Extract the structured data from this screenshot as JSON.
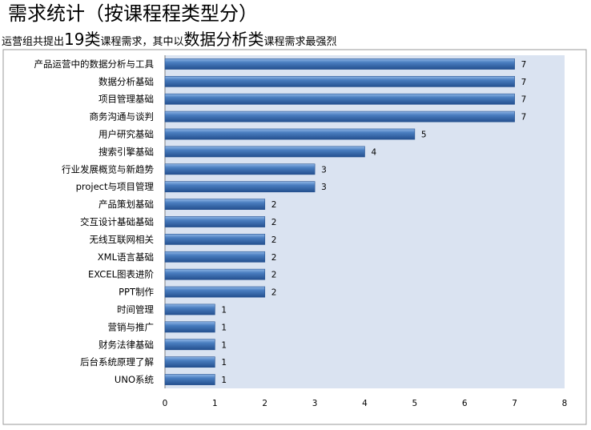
{
  "title": "需求统计（按课程程类型分）",
  "subtitle": {
    "prefix": "运营组共提出",
    "count": "19类",
    "middle": "课程需求，其中以",
    "highlight": "数据分析类",
    "suffix": "课程需求最强烈"
  },
  "chart_data": {
    "type": "bar",
    "orientation": "horizontal",
    "categories": [
      "产品运营中的数据分析与工具",
      "数据分析基础",
      "项目管理基础",
      "商务沟通与谈判",
      "用户研究基础",
      "搜索引擎基础",
      "行业发展概览与新趋势",
      "project与项目管理",
      "产品策划基础",
      "交互设计基础基础",
      "无线互联网相关",
      "XML语言基础",
      "EXCEL图表进阶",
      "PPT制作",
      "时间管理",
      "营销与推广",
      "财务法律基础",
      "后台系统原理了解",
      "UNO系统"
    ],
    "values": [
      7,
      7,
      7,
      7,
      5,
      4,
      3,
      3,
      2,
      2,
      2,
      2,
      2,
      2,
      1,
      1,
      1,
      1,
      1
    ],
    "xlim": [
      0,
      8
    ],
    "xticks": [
      0,
      1,
      2,
      3,
      4,
      5,
      6,
      7,
      8
    ],
    "data_labels": true,
    "grid": false,
    "legend": "none",
    "colors": {
      "bar": "#4a7ec0",
      "bar_light": "#8fb6e6",
      "bar_dark": "#24508f",
      "plot_background": "#dae3f1",
      "border": "#9a9a9a"
    }
  }
}
